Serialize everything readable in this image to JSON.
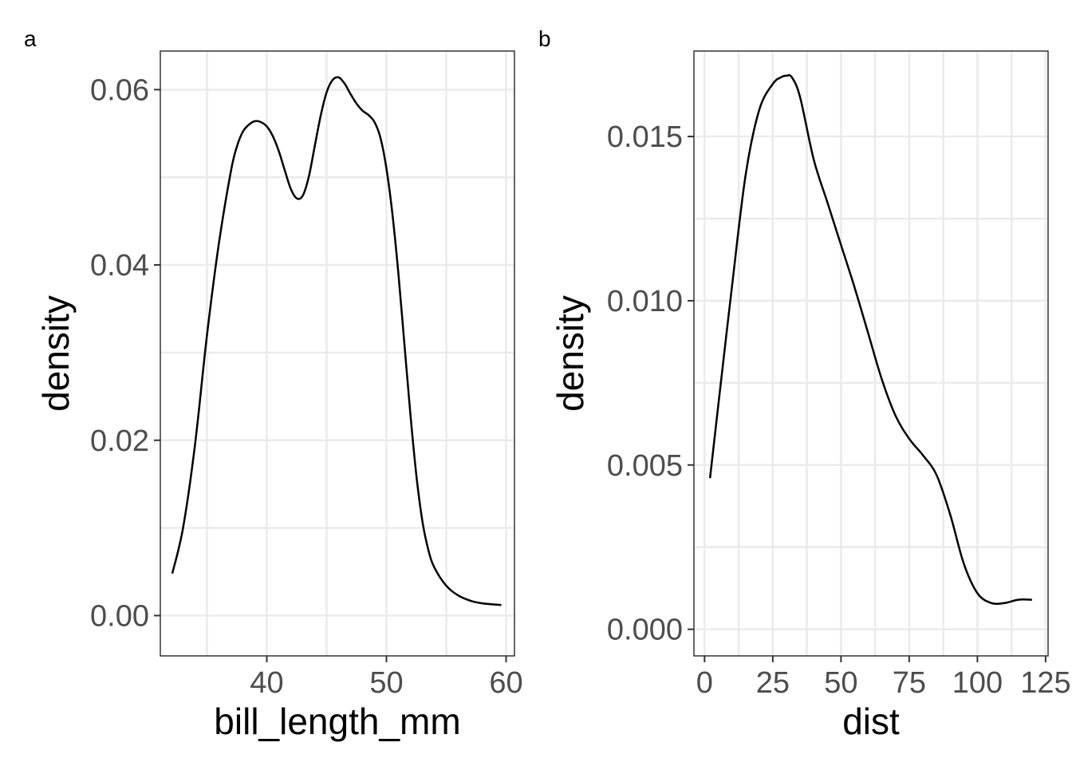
{
  "chart_data": [
    {
      "type": "line",
      "tag": "a",
      "xlabel": "bill_length_mm",
      "ylabel": "density",
      "xlim": [
        31.1,
        60.7
      ],
      "ylim": [
        -0.0046,
        0.0644
      ],
      "xticks": [
        40,
        50,
        60
      ],
      "xtick_labels": [
        "40",
        "50",
        "60"
      ],
      "yticks": [
        0.0,
        0.02,
        0.04,
        0.06
      ],
      "ytick_labels": [
        "0.00",
        "0.02",
        "0.04",
        "0.06"
      ],
      "xgrid_minor": [
        35,
        45,
        55
      ],
      "ygrid_minor": [
        0.01,
        0.03,
        0.05
      ],
      "grid": true,
      "series": [
        {
          "x": [
            32.1,
            33.0,
            34.0,
            35.0,
            36.0,
            37.0,
            37.5,
            38.0,
            38.5,
            39.0,
            39.5,
            40.0,
            40.5,
            41.0,
            41.5,
            42.0,
            42.5,
            43.0,
            43.5,
            44.0,
            44.5,
            45.0,
            45.5,
            46.0,
            46.5,
            47.0,
            47.5,
            48.0,
            48.5,
            49.0,
            49.5,
            50.0,
            50.5,
            51.0,
            51.5,
            52.0,
            52.5,
            53.0,
            53.5,
            54.0,
            55.0,
            56.0,
            57.0,
            58.0,
            59.6
          ],
          "y": [
            0.0048,
            0.01,
            0.0195,
            0.032,
            0.0425,
            0.0507,
            0.0535,
            0.0552,
            0.056,
            0.0564,
            0.0563,
            0.0558,
            0.0547,
            0.053,
            0.0508,
            0.0487,
            0.0476,
            0.0479,
            0.05,
            0.0535,
            0.057,
            0.0597,
            0.0611,
            0.0614,
            0.0607,
            0.0595,
            0.0584,
            0.0576,
            0.0571,
            0.0563,
            0.0545,
            0.051,
            0.0458,
            0.039,
            0.031,
            0.023,
            0.016,
            0.0108,
            0.0075,
            0.0055,
            0.0034,
            0.0023,
            0.0017,
            0.0014,
            0.0012
          ]
        }
      ]
    },
    {
      "type": "line",
      "tag": "b",
      "xlabel": "dist",
      "ylabel": "density",
      "xlim": [
        -3.9,
        125.9
      ],
      "ylim": [
        -0.00081,
        0.0176
      ],
      "xticks": [
        0,
        25,
        50,
        75,
        100,
        125
      ],
      "xtick_labels": [
        "0",
        "25",
        "50",
        "75",
        "100",
        "125"
      ],
      "yticks": [
        0.0,
        0.005,
        0.01,
        0.015
      ],
      "ytick_labels": [
        "0.000",
        "0.005",
        "0.010",
        "0.015"
      ],
      "xgrid_minor": [
        12.5,
        37.5,
        62.5,
        87.5,
        112.5
      ],
      "ygrid_minor": [
        0.0025,
        0.0075,
        0.0125
      ],
      "grid": true,
      "series": [
        {
          "x": [
            2,
            5,
            10,
            15,
            20,
            25,
            28,
            30,
            32,
            35,
            40,
            45,
            50,
            55,
            60,
            65,
            70,
            75,
            80,
            85,
            90,
            95,
            100,
            105,
            110,
            115,
            120
          ],
          "y": [
            0.0046,
            0.0068,
            0.0104,
            0.0138,
            0.0158,
            0.0166,
            0.0168,
            0.01685,
            0.0168,
            0.0162,
            0.0143,
            0.013,
            0.0117,
            0.0104,
            0.009,
            0.0076,
            0.0065,
            0.0058,
            0.0053,
            0.0047,
            0.0035,
            0.002,
            0.0011,
            0.0008,
            0.0008,
            0.0009,
            0.0009
          ]
        }
      ]
    }
  ]
}
